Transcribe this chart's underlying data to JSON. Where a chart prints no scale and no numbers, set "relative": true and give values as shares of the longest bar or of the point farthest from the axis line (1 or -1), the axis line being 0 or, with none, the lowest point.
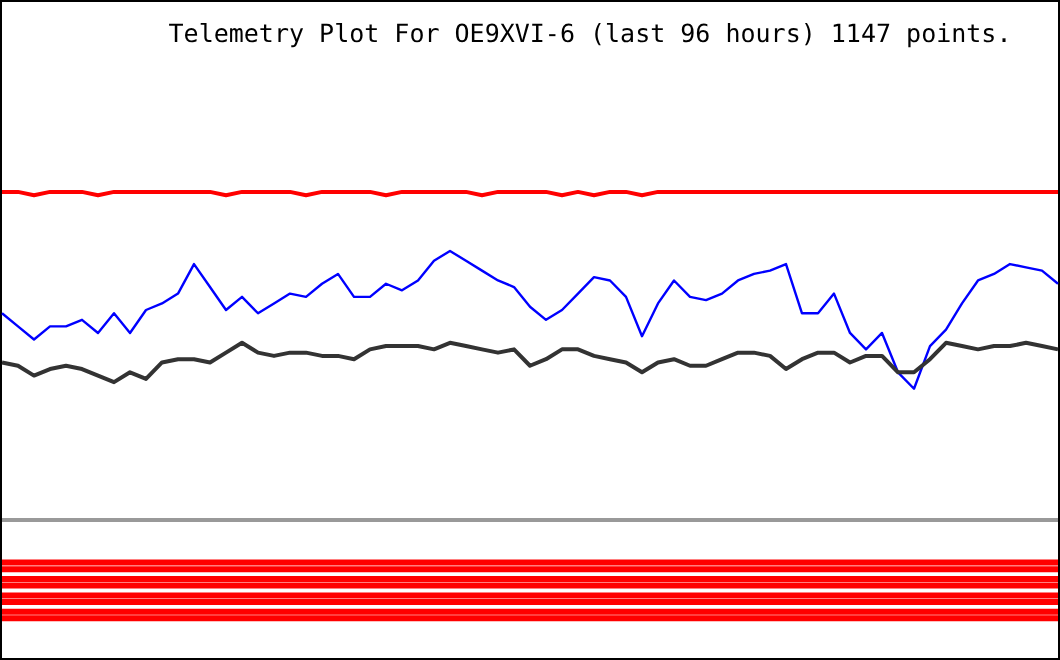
{
  "chart_data": {
    "type": "line",
    "title": "Telemetry Plot For OE9XVI-6 (last 96 hours) 1147 points.",
    "relative": true,
    "categories": [
      null,
      null,
      null,
      null,
      null,
      null,
      null,
      null,
      null,
      null,
      null,
      null,
      null,
      null,
      null,
      null,
      null,
      null,
      null,
      null,
      null,
      null,
      null,
      null,
      null,
      null,
      null,
      null,
      null,
      null,
      null,
      null,
      null,
      null,
      null,
      null,
      null,
      null,
      null,
      null,
      null,
      null,
      null,
      null,
      null,
      null,
      null,
      null,
      null,
      null,
      null,
      null,
      null,
      null,
      null,
      null,
      null,
      null,
      null,
      null,
      null,
      null,
      null,
      null,
      null,
      null,
      null
    ],
    "series": [
      {
        "color": "#ff0000",
        "values": [
          1,
          1,
          0.99,
          1,
          1,
          1,
          0.99,
          1,
          1,
          1,
          1,
          1,
          1,
          1,
          0.99,
          1,
          1,
          1,
          1,
          0.99,
          1,
          1,
          1,
          1,
          0.99,
          1,
          1,
          1,
          1,
          1,
          0.99,
          1,
          1,
          1,
          1,
          0.99,
          1,
          0.99,
          1,
          1,
          0.99,
          1,
          1,
          1,
          1,
          1,
          1,
          1,
          1,
          1,
          1,
          1,
          1,
          1,
          1,
          1,
          1,
          1,
          1,
          1,
          1,
          1,
          1,
          1,
          1,
          1,
          1
        ]
      },
      {
        "color": "#0000ff",
        "values": [
          0.63,
          0.59,
          0.55,
          0.59,
          0.59,
          0.61,
          0.57,
          0.63,
          0.57,
          0.64,
          0.66,
          0.69,
          0.78,
          0.71,
          0.64,
          0.68,
          0.63,
          0.66,
          0.69,
          0.68,
          0.72,
          0.75,
          0.68,
          0.68,
          0.72,
          0.7,
          0.73,
          0.79,
          0.82,
          0.79,
          0.76,
          0.73,
          0.71,
          0.65,
          0.61,
          0.64,
          0.69,
          0.74,
          0.73,
          0.68,
          0.56,
          0.66,
          0.73,
          0.68,
          0.67,
          0.69,
          0.73,
          0.75,
          0.76,
          0.78,
          0.63,
          0.63,
          0.69,
          0.57,
          0.52,
          0.57,
          0.45,
          0.4,
          0.53,
          0.58,
          0.66,
          0.73,
          0.75,
          0.78,
          0.77,
          0.76,
          0.72
        ]
      },
      {
        "color": "#333333",
        "values": [
          0.48,
          0.47,
          0.44,
          0.46,
          0.47,
          0.46,
          0.44,
          0.42,
          0.45,
          0.43,
          0.48,
          0.49,
          0.49,
          0.48,
          0.51,
          0.54,
          0.51,
          0.5,
          0.51,
          0.51,
          0.5,
          0.5,
          0.49,
          0.52,
          0.53,
          0.53,
          0.53,
          0.52,
          0.54,
          0.53,
          0.52,
          0.51,
          0.52,
          0.47,
          0.49,
          0.52,
          0.52,
          0.5,
          0.49,
          0.48,
          0.45,
          0.48,
          0.49,
          0.47,
          0.47,
          0.49,
          0.51,
          0.51,
          0.5,
          0.46,
          0.49,
          0.51,
          0.51,
          0.48,
          0.5,
          0.5,
          0.45,
          0.45,
          0.49,
          0.54,
          0.53,
          0.52,
          0.53,
          0.53,
          0.54,
          0.53,
          0.52
        ]
      },
      {
        "color": "#ff0000",
        "values": [
          -0.13,
          -0.13,
          -0.13,
          -0.13,
          -0.13,
          -0.13,
          -0.13,
          -0.13,
          -0.13,
          -0.13,
          -0.13,
          -0.13,
          -0.13,
          -0.13,
          -0.13,
          -0.13,
          -0.13,
          -0.13,
          -0.13,
          -0.13,
          -0.13,
          -0.13,
          -0.13,
          -0.13,
          -0.13,
          -0.13,
          -0.13,
          -0.13,
          -0.13,
          -0.13,
          -0.13,
          -0.13,
          -0.13,
          -0.13,
          -0.13,
          -0.13,
          -0.13,
          -0.13,
          -0.13,
          -0.13,
          -0.13,
          -0.13,
          -0.13,
          -0.13,
          -0.13,
          -0.13,
          -0.13,
          -0.13,
          -0.13,
          -0.13,
          -0.13,
          -0.13,
          -0.13,
          -0.13,
          -0.13,
          -0.13,
          -0.13,
          -0.13,
          -0.13,
          -0.13,
          -0.13,
          -0.13,
          -0.13,
          -0.13,
          -0.13,
          -0.13,
          -0.13
        ]
      },
      {
        "color": "#ff0000",
        "values": [
          -0.15,
          -0.15,
          -0.15,
          -0.15,
          -0.15,
          -0.15,
          -0.15,
          -0.15,
          -0.15,
          -0.15,
          -0.15,
          -0.15,
          -0.15,
          -0.15,
          -0.15,
          -0.15,
          -0.15,
          -0.15,
          -0.15,
          -0.15,
          -0.15,
          -0.15,
          -0.15,
          -0.15,
          -0.15,
          -0.15,
          -0.15,
          -0.15,
          -0.15,
          -0.15,
          -0.15,
          -0.15,
          -0.15,
          -0.15,
          -0.15,
          -0.15,
          -0.15,
          -0.15,
          -0.15,
          -0.15,
          -0.15,
          -0.15,
          -0.15,
          -0.15,
          -0.15,
          -0.15,
          -0.15,
          -0.15,
          -0.15,
          -0.15,
          -0.15,
          -0.15,
          -0.15,
          -0.15,
          -0.15,
          -0.15,
          -0.15,
          -0.15,
          -0.15,
          -0.15,
          -0.15,
          -0.15,
          -0.15,
          -0.15,
          -0.15,
          -0.15,
          -0.15
        ]
      },
      {
        "color": "#ff0000",
        "values": [
          -0.18,
          -0.18,
          -0.18,
          -0.18,
          -0.18,
          -0.18,
          -0.18,
          -0.18,
          -0.18,
          -0.18,
          -0.18,
          -0.18,
          -0.18,
          -0.18,
          -0.18,
          -0.18,
          -0.18,
          -0.18,
          -0.18,
          -0.18,
          -0.18,
          -0.18,
          -0.18,
          -0.18,
          -0.18,
          -0.18,
          -0.18,
          -0.18,
          -0.18,
          -0.18,
          -0.18,
          -0.18,
          -0.18,
          -0.18,
          -0.18,
          -0.18,
          -0.18,
          -0.18,
          -0.18,
          -0.18,
          -0.18,
          -0.18,
          -0.18,
          -0.18,
          -0.18,
          -0.18,
          -0.18,
          -0.18,
          -0.18,
          -0.18,
          -0.18,
          -0.18,
          -0.18,
          -0.18,
          -0.18,
          -0.18,
          -0.18,
          -0.18,
          -0.18,
          -0.18,
          -0.18,
          -0.18,
          -0.18,
          -0.18,
          -0.18,
          -0.18,
          -0.18
        ]
      },
      {
        "color": "#ff0000",
        "values": [
          -0.2,
          -0.2,
          -0.2,
          -0.2,
          -0.2,
          -0.2,
          -0.2,
          -0.2,
          -0.2,
          -0.2,
          -0.2,
          -0.2,
          -0.2,
          -0.2,
          -0.2,
          -0.2,
          -0.2,
          -0.2,
          -0.2,
          -0.2,
          -0.2,
          -0.2,
          -0.2,
          -0.2,
          -0.2,
          -0.2,
          -0.2,
          -0.2,
          -0.2,
          -0.2,
          -0.2,
          -0.2,
          -0.2,
          -0.2,
          -0.2,
          -0.2,
          -0.2,
          -0.2,
          -0.2,
          -0.2,
          -0.2,
          -0.2,
          -0.2,
          -0.2,
          -0.2,
          -0.2,
          -0.2,
          -0.2,
          -0.2,
          -0.2,
          -0.2,
          -0.2,
          -0.2,
          -0.2,
          -0.2,
          -0.2,
          -0.2,
          -0.2,
          -0.2,
          -0.2,
          -0.2,
          -0.2,
          -0.2,
          -0.2,
          -0.2,
          -0.2,
          -0.2
        ]
      },
      {
        "color": "#ff0000",
        "values": [
          -0.23,
          -0.23,
          -0.23,
          -0.23,
          -0.23,
          -0.23,
          -0.23,
          -0.23,
          -0.23,
          -0.23,
          -0.23,
          -0.23,
          -0.23,
          -0.23,
          -0.23,
          -0.23,
          -0.23,
          -0.23,
          -0.23,
          -0.23,
          -0.23,
          -0.23,
          -0.23,
          -0.23,
          -0.23,
          -0.23,
          -0.23,
          -0.23,
          -0.23,
          -0.23,
          -0.23,
          -0.23,
          -0.23,
          -0.23,
          -0.23,
          -0.23,
          -0.23,
          -0.23,
          -0.23,
          -0.23,
          -0.23,
          -0.23,
          -0.23,
          -0.23,
          -0.23,
          -0.23,
          -0.23,
          -0.23,
          -0.23,
          -0.23,
          -0.23,
          -0.23,
          -0.23,
          -0.23,
          -0.23,
          -0.23,
          -0.23,
          -0.23,
          -0.23,
          -0.23,
          -0.23,
          -0.23,
          -0.23,
          -0.23,
          -0.23,
          -0.23,
          -0.23
        ]
      },
      {
        "color": "#ff0000",
        "values": [
          -0.25,
          -0.25,
          -0.25,
          -0.25,
          -0.25,
          -0.25,
          -0.25,
          -0.25,
          -0.25,
          -0.25,
          -0.25,
          -0.25,
          -0.25,
          -0.25,
          -0.25,
          -0.25,
          -0.25,
          -0.25,
          -0.25,
          -0.25,
          -0.25,
          -0.25,
          -0.25,
          -0.25,
          -0.25,
          -0.25,
          -0.25,
          -0.25,
          -0.25,
          -0.25,
          -0.25,
          -0.25,
          -0.25,
          -0.25,
          -0.25,
          -0.25,
          -0.25,
          -0.25,
          -0.25,
          -0.25,
          -0.25,
          -0.25,
          -0.25,
          -0.25,
          -0.25,
          -0.25,
          -0.25,
          -0.25,
          -0.25,
          -0.25,
          -0.25,
          -0.25,
          -0.25,
          -0.25,
          -0.25,
          -0.25,
          -0.25,
          -0.25,
          -0.25,
          -0.25,
          -0.25,
          -0.25,
          -0.25,
          -0.25,
          -0.25,
          -0.25,
          -0.25
        ]
      },
      {
        "color": "#ff0000",
        "values": [
          -0.28,
          -0.28,
          -0.28,
          -0.28,
          -0.28,
          -0.28,
          -0.28,
          -0.28,
          -0.28,
          -0.28,
          -0.28,
          -0.28,
          -0.28,
          -0.28,
          -0.28,
          -0.28,
          -0.28,
          -0.28,
          -0.28,
          -0.28,
          -0.28,
          -0.28,
          -0.28,
          -0.28,
          -0.28,
          -0.28,
          -0.28,
          -0.28,
          -0.28,
          -0.28,
          -0.28,
          -0.28,
          -0.28,
          -0.28,
          -0.28,
          -0.28,
          -0.28,
          -0.28,
          -0.28,
          -0.28,
          -0.28,
          -0.28,
          -0.28,
          -0.28,
          -0.28,
          -0.28,
          -0.28,
          -0.28,
          -0.28,
          -0.28,
          -0.28,
          -0.28,
          -0.28,
          -0.28,
          -0.28,
          -0.28,
          -0.28,
          -0.28,
          -0.28,
          -0.28,
          -0.28,
          -0.28,
          -0.28,
          -0.28,
          -0.28,
          -0.28,
          -0.28
        ]
      },
      {
        "color": "#ff0000",
        "values": [
          -0.3,
          -0.3,
          -0.3,
          -0.3,
          -0.3,
          -0.3,
          -0.3,
          -0.3,
          -0.3,
          -0.3,
          -0.3,
          -0.3,
          -0.3,
          -0.3,
          -0.3,
          -0.3,
          -0.3,
          -0.3,
          -0.3,
          -0.3,
          -0.3,
          -0.3,
          -0.3,
          -0.3,
          -0.3,
          -0.3,
          -0.3,
          -0.3,
          -0.3,
          -0.3,
          -0.3,
          -0.3,
          -0.3,
          -0.3,
          -0.3,
          -0.3,
          -0.3,
          -0.3,
          -0.3,
          -0.3,
          -0.3,
          -0.3,
          -0.3,
          -0.3,
          -0.3,
          -0.3,
          -0.3,
          -0.3,
          -0.3,
          -0.3,
          -0.3,
          -0.3,
          -0.3,
          -0.3,
          -0.3,
          -0.3,
          -0.3,
          -0.3,
          -0.3,
          -0.3,
          -0.3,
          -0.3,
          -0.3,
          -0.3,
          -0.3,
          -0.3,
          -0.3
        ]
      }
    ]
  }
}
